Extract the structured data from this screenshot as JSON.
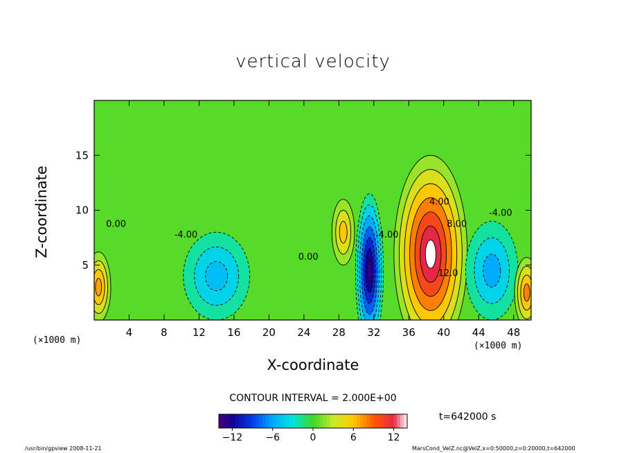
{
  "chart_data": {
    "type": "contour",
    "title": "vertical velocity",
    "xlabel": "X-coordinate",
    "ylabel": "Z-coordinate",
    "x_unit": "(×1000 m)",
    "xlim": [
      0,
      50
    ],
    "ylim": [
      0,
      20
    ],
    "x_ticks": [
      4,
      8,
      12,
      16,
      20,
      24,
      28,
      32,
      36,
      40,
      44,
      48
    ],
    "y_ticks": [
      5,
      10,
      15
    ],
    "contour_interval_text": "CONTOUR INTERVAL = 2.000E+00",
    "contour_interval": 2.0,
    "time_text": "t=642000 s",
    "contour_labels": [
      {
        "text": "4.00",
        "x": 39.5,
        "z": 10.5
      },
      {
        "text": "8.00",
        "x": 41.5,
        "z": 8.5
      },
      {
        "text": "12.0",
        "x": 40.5,
        "z": 4.0
      },
      {
        "text": "-4.00",
        "x": 46.5,
        "z": 9.5
      },
      {
        "text": "-4.00",
        "x": 33.5,
        "z": 7.5
      },
      {
        "text": "-4.00",
        "x": 10.5,
        "z": 7.5
      },
      {
        "text": "0.00",
        "x": 24.5,
        "z": 5.5
      },
      {
        "text": "0.00",
        "x": 2.5,
        "z": 8.5
      }
    ],
    "features": [
      {
        "kind": "updraft",
        "x": 38.5,
        "z": 6.0,
        "peak": 14
      },
      {
        "kind": "downdraft",
        "x": 31.5,
        "z": 4.5,
        "peak": -13
      },
      {
        "kind": "downdraft",
        "x": 14,
        "z": 4.0,
        "peak": -5
      },
      {
        "kind": "downdraft",
        "x": 45.5,
        "z": 4.5,
        "peak": -6
      },
      {
        "kind": "updraft",
        "x": 49.5,
        "z": 2.5,
        "peak": 8
      },
      {
        "kind": "updraft",
        "x": 0.5,
        "z": 3.0,
        "peak": 7
      },
      {
        "kind": "updraft",
        "x": 28.5,
        "z": 8.0,
        "peak": 6
      }
    ],
    "colorbar": {
      "ticks": [
        -12,
        -6,
        0,
        6,
        12
      ],
      "range": [
        -14,
        14
      ]
    }
  },
  "footer_left": "/usr/bin/gpview  2008-11-21",
  "footer_right": "MarsCond_VelZ.nc@VelZ,x=0:50000,z=0:20000,t=642000"
}
